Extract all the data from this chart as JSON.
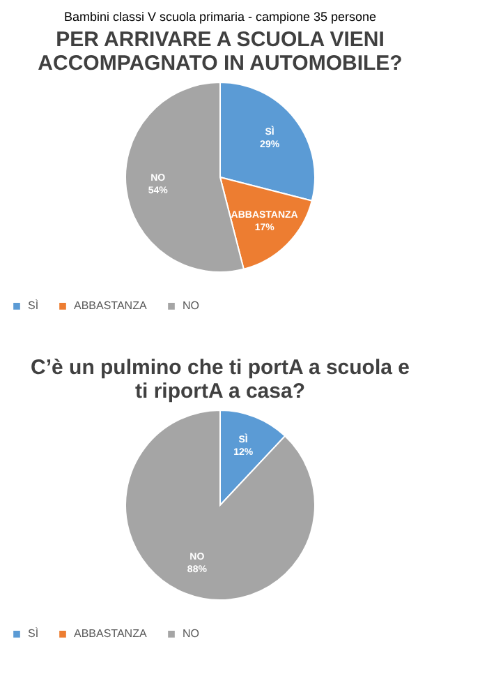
{
  "chart_data": [
    {
      "type": "pie",
      "title": "PER ARRIVARE A SCUOLA VIENI\nACCOMPAGNATO IN AUTOMOBILE?",
      "annotations": [
        "Bambini classi V scuola primaria - campione 35 persone"
      ],
      "categories": [
        "SÌ",
        "ABBASTANZA",
        "NO"
      ],
      "values": [
        29,
        17,
        54
      ],
      "value_labels": [
        "29%",
        "17%",
        "54%"
      ],
      "colors": [
        "#5b9bd5",
        "#ed7d31",
        "#a5a5a5"
      ],
      "legend": "bottom"
    },
    {
      "type": "pie",
      "title": "C’è un pulmino che ti portA a scuola e\nti riportA a casa?",
      "categories": [
        "SÌ",
        "ABBASTANZA",
        "NO"
      ],
      "values": [
        12,
        0,
        88
      ],
      "value_labels": [
        "12%",
        null,
        "88%"
      ],
      "colors": [
        "#5b9bd5",
        "#ed7d31",
        "#a5a5a5"
      ],
      "legend": "bottom"
    }
  ]
}
